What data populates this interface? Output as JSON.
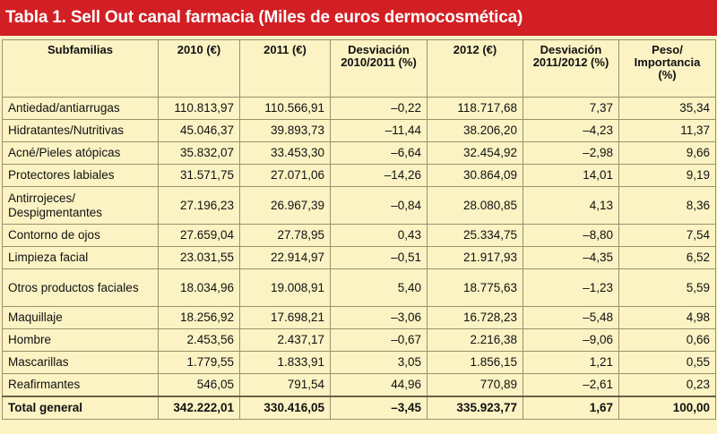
{
  "title": "Tabla 1. Sell Out canal farmacia (Miles de euros dermocosmética)",
  "colors": {
    "title_bg": "#d21f24",
    "table_bg": "#fcf3c4",
    "border": "#9a8f6a"
  },
  "headers": [
    "Subfamilias",
    "2010 (€)",
    "2011 (€)",
    "Desviación 2010/2011 (%)",
    "2012 (€)",
    "Desviación 2011/2012 (%)",
    "Peso/ Importancia (%)"
  ],
  "rows": [
    [
      "Antiedad/antiarrugas",
      "110.813,97",
      "110.566,91",
      "–0,22",
      "118.717,68",
      "7,37",
      "35,34"
    ],
    [
      "Hidratantes/Nutritivas",
      "45.046,37",
      "39.893,73",
      "–11,44",
      "38.206,20",
      "–4,23",
      "11,37"
    ],
    [
      "Acné/Pieles atópicas",
      "35.832,07",
      "33.453,30",
      "–6,64",
      "32.454,92",
      "–2,98",
      "9,66"
    ],
    [
      "Protectores labiales",
      "31.571,75",
      "27.071,06",
      "–14,26",
      "30.864,09",
      "14,01",
      "9,19"
    ],
    [
      "Antirrojeces/ Despigmentantes",
      "27.196,23",
      "26.967,39",
      "–0,84",
      "28.080,85",
      "4,13",
      "8,36"
    ],
    [
      "Contorno de ojos",
      "27.659,04",
      "27.78,95",
      "0,43",
      "25.334,75",
      "–8,80",
      "7,54"
    ],
    [
      "Limpieza facial",
      "23.031,55",
      "22.914,97",
      "–0,51",
      "21.917,93",
      "–4,35",
      "6,52"
    ],
    [
      "Otros productos faciales",
      "18.034,96",
      "19.008,91",
      "5,40",
      "18.775,63",
      "–1,23",
      "5,59"
    ],
    [
      "Maquillaje",
      "18.256,92",
      "17.698,21",
      "–3,06",
      "16.728,23",
      "–5,48",
      "4,98"
    ],
    [
      "Hombre",
      "2.453,56",
      "2.437,17",
      "–0,67",
      "2.216,38",
      "–9,06",
      "0,66"
    ],
    [
      "Mascarillas",
      "1.779,55",
      "1.833,91",
      "3,05",
      "1.856,15",
      "1,21",
      "0,55"
    ],
    [
      "Reafirmantes",
      "546,05",
      "791,54",
      "44,96",
      "770,89",
      "–2,61",
      "0,23"
    ]
  ],
  "total": [
    "Total general",
    "342.222,01",
    "330.416,05",
    "–3,45",
    "335.923,77",
    "1,67",
    "100,00"
  ]
}
